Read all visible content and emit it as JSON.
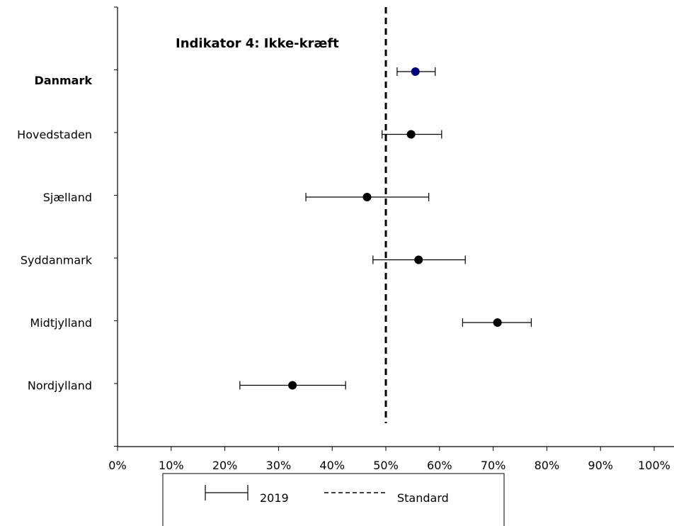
{
  "chart_data": {
    "type": "scatter",
    "title": "Indikator 4: Ikke-kræft",
    "xlabel": "",
    "ylabel": "",
    "xlim": [
      0,
      100
    ],
    "x_ticks": [
      "0%",
      "10%",
      "20%",
      "30%",
      "40%",
      "50%",
      "60%",
      "70%",
      "80%",
      "90%",
      "100%"
    ],
    "categories": [
      "Danmark",
      "Hovedstaden",
      "Sjælland",
      "Syddanmark",
      "Midtjylland",
      "Nordjylland"
    ],
    "series": [
      {
        "name": "2019",
        "values": [
          55.5,
          54.7,
          46.5,
          56.1,
          70.8,
          32.6
        ],
        "lower": [
          52.1,
          49.3,
          35.1,
          47.6,
          64.3,
          22.8
        ],
        "upper": [
          59.2,
          60.4,
          58.0,
          64.8,
          77.1,
          42.5
        ],
        "point_colors": [
          "#00007f",
          "#000000",
          "#000000",
          "#000000",
          "#000000",
          "#000000"
        ]
      }
    ],
    "standard": {
      "name": "Standard",
      "value": 50
    },
    "bold_categories": [
      "Danmark"
    ],
    "grid": false,
    "legend_position": "bottom"
  }
}
